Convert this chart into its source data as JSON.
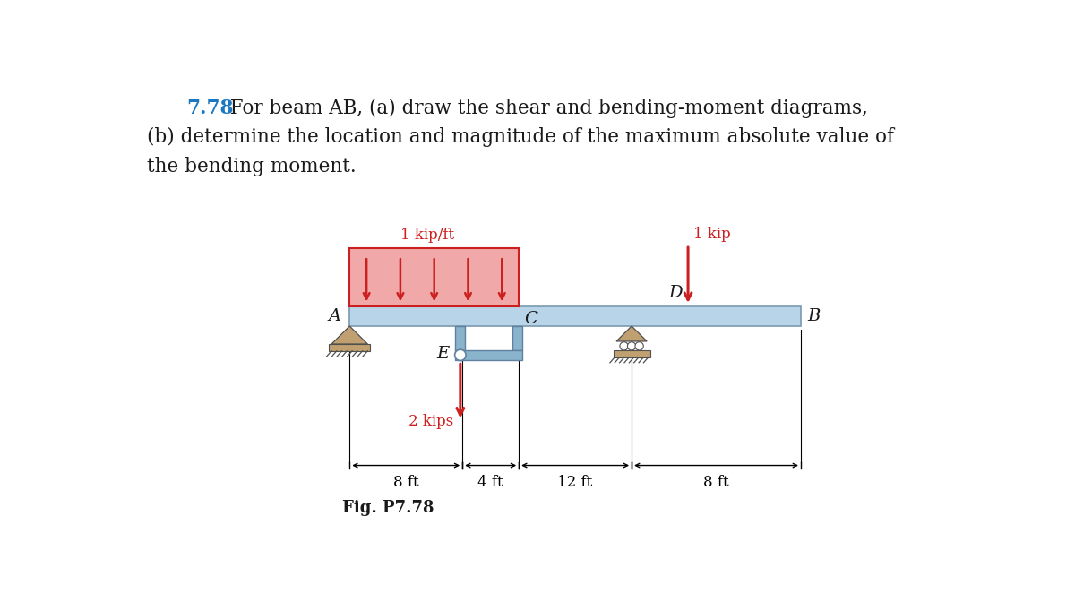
{
  "title_number": "7.78",
  "title_rest_line1": "  For beam AB, (a) draw the shear and bending-moment diagrams,",
  "title_line2": "(b) determine the location and magnitude of the maximum absolute value of",
  "title_line3": "the bending moment.",
  "fig_label": "Fig. P7.78",
  "label_A": "A",
  "label_B": "B",
  "label_C": "C",
  "label_D": "D",
  "label_E": "E",
  "load_dist_label": "1 kip/ft",
  "load_point_label": "1 kip",
  "load_reaction_label": "2 kips",
  "dim_left": "8 ft",
  "dim_mid": "4 ft",
  "dim_12ft": "12 ft",
  "dim_right": "8 ft",
  "beam_color": "#b8d4e8",
  "beam_edge_color": "#7a9ab0",
  "bracket_color": "#8ab4cc",
  "bracket_edge": "#6080a0",
  "arrow_color": "#cc2020",
  "load_box_fill": "#f0a8a8",
  "load_box_edge": "#cc2020",
  "text_number_color": "#1a78c2",
  "text_body_color": "#1a1a1a",
  "support_tri_color": "#c0a070",
  "support_base_color": "#b89060",
  "support_edge_color": "#505050",
  "dim_line_color": "#000000",
  "bg_color": "#ffffff",
  "title_fontsize": 15.5,
  "label_fontsize": 14,
  "dim_fontsize": 12,
  "load_label_fontsize": 12
}
